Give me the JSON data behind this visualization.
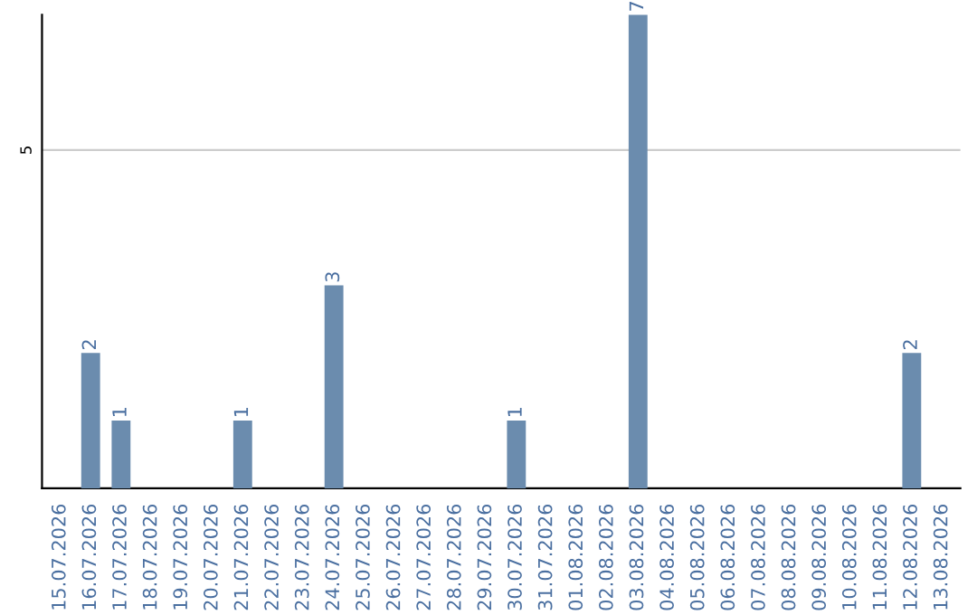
{
  "chart_data": {
    "type": "bar",
    "categories": [
      "15.07.2026",
      "16.07.2026",
      "17.07.2026",
      "18.07.2026",
      "19.07.2026",
      "20.07.2026",
      "21.07.2026",
      "22.07.2026",
      "23.07.2026",
      "24.07.2026",
      "25.07.2026",
      "26.07.2026",
      "27.07.2026",
      "28.07.2026",
      "29.07.2026",
      "30.07.2026",
      "31.07.2026",
      "01.08.2026",
      "02.08.2026",
      "03.08.2026",
      "04.08.2026",
      "05.08.2026",
      "06.08.2026",
      "07.08.2026",
      "08.08.2026",
      "09.08.2026",
      "10.08.2026",
      "11.08.2026",
      "12.08.2026",
      "13.08.2026"
    ],
    "values": [
      0,
      2,
      1,
      0,
      0,
      0,
      1,
      0,
      0,
      3,
      0,
      0,
      0,
      0,
      0,
      1,
      0,
      0,
      0,
      7,
      0,
      0,
      0,
      0,
      0,
      0,
      0,
      0,
      2,
      0
    ],
    "value_labels": [
      null,
      "2",
      "1",
      null,
      null,
      null,
      "1",
      null,
      null,
      "3",
      null,
      null,
      null,
      null,
      null,
      "1",
      null,
      null,
      null,
      "7",
      null,
      null,
      null,
      null,
      null,
      null,
      null,
      null,
      "2",
      null
    ],
    "color": "#6b8cae",
    "ylim": [
      0,
      7
    ],
    "yticks": [
      5
    ],
    "grid": "y"
  }
}
